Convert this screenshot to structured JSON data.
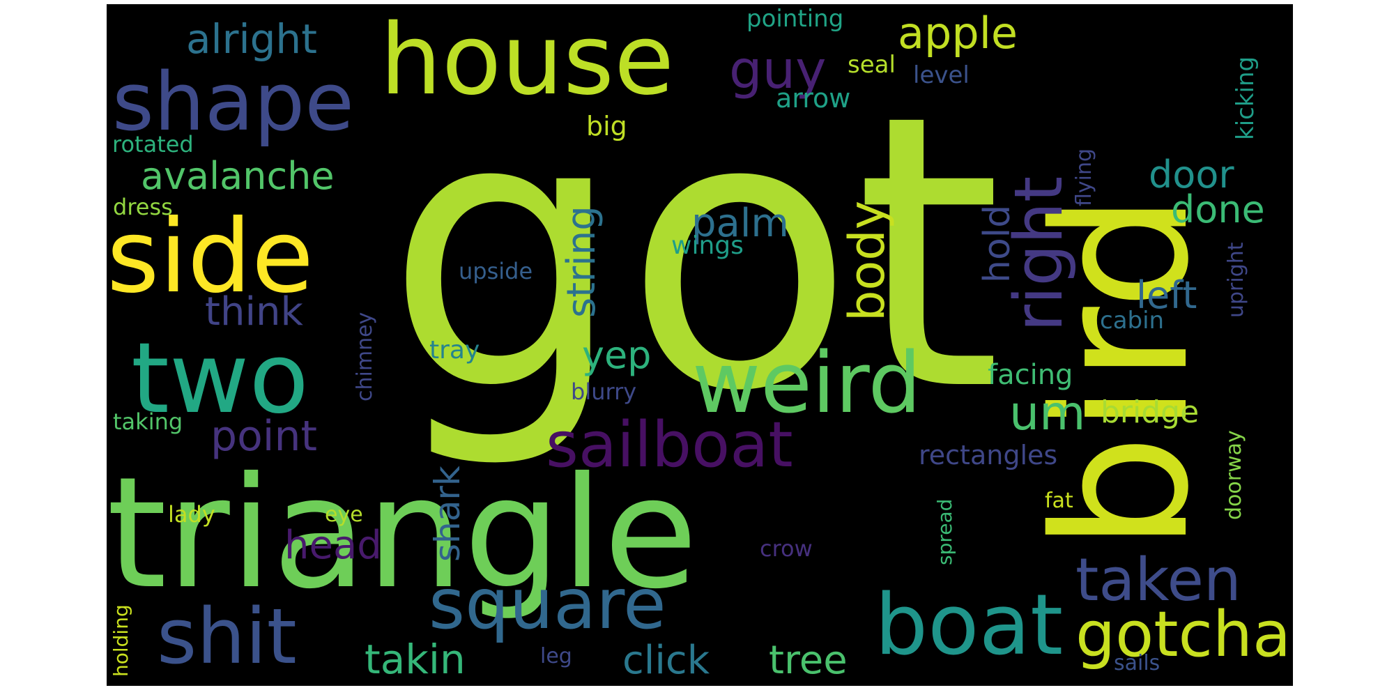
{
  "words": [
    {
      "text": "got",
      "color": "#addc30"
    },
    {
      "text": "triangle",
      "color": "#6ece58"
    },
    {
      "text": "bird",
      "color": "#d0e11c"
    },
    {
      "text": "house",
      "color": "#bddf26"
    },
    {
      "text": "side",
      "color": "#fde725"
    },
    {
      "text": "two",
      "color": "#22a884"
    },
    {
      "text": "shape",
      "color": "#3e4a89"
    },
    {
      "text": "weird",
      "color": "#5ec962"
    },
    {
      "text": "boat",
      "color": "#1f958b"
    },
    {
      "text": "shit",
      "color": "#3b528b"
    },
    {
      "text": "square",
      "color": "#31688e"
    },
    {
      "text": "sailboat",
      "color": "#471063"
    },
    {
      "text": "gotcha",
      "color": "#c8e020"
    },
    {
      "text": "right",
      "color": "#443983"
    },
    {
      "text": "taken",
      "color": "#3e4c8a"
    },
    {
      "text": "guy",
      "color": "#482173"
    },
    {
      "text": "body",
      "color": "#c8e020"
    },
    {
      "text": "um",
      "color": "#4ac16d"
    },
    {
      "text": "apple",
      "color": "#c2df23"
    },
    {
      "text": "avalanche",
      "color": "#52c569"
    },
    {
      "text": "tree",
      "color": "#4ac16d"
    },
    {
      "text": "click",
      "color": "#2a788e"
    },
    {
      "text": "takin",
      "color": "#35b779"
    },
    {
      "text": "palm",
      "color": "#2d708e"
    },
    {
      "text": "point",
      "color": "#46337e"
    },
    {
      "text": "string",
      "color": "#2c728e"
    },
    {
      "text": "door",
      "color": "#21918c"
    },
    {
      "text": "done",
      "color": "#3bbb75"
    },
    {
      "text": "alright",
      "color": "#2c728e"
    },
    {
      "text": "think",
      "color": "#414487"
    },
    {
      "text": "yep",
      "color": "#2db27d"
    },
    {
      "text": "left",
      "color": "#31688e"
    },
    {
      "text": "hold",
      "color": "#3e4a89"
    },
    {
      "text": "head",
      "color": "#481a6c"
    },
    {
      "text": "shark",
      "color": "#33638d"
    },
    {
      "text": "bridge",
      "color": "#a8db34"
    },
    {
      "text": "facing",
      "color": "#3fbc73"
    },
    {
      "text": "rectangles",
      "color": "#3f4788"
    },
    {
      "text": "pointing",
      "color": "#20a486"
    },
    {
      "text": "arrow",
      "color": "#1fa187"
    },
    {
      "text": "seal",
      "color": "#b5de2b"
    },
    {
      "text": "level",
      "color": "#3b528b"
    },
    {
      "text": "kicking",
      "color": "#1f9e89"
    },
    {
      "text": "flying",
      "color": "#3f4788"
    },
    {
      "text": "big",
      "color": "#c0df25"
    },
    {
      "text": "rotated",
      "color": "#2db27d"
    },
    {
      "text": "dress",
      "color": "#93d741"
    },
    {
      "text": "wings",
      "color": "#1f9e89"
    },
    {
      "text": "upside",
      "color": "#355f8d"
    },
    {
      "text": "upright",
      "color": "#3f4788"
    },
    {
      "text": "cabin",
      "color": "#2d708e"
    },
    {
      "text": "tray",
      "color": "#25848e"
    },
    {
      "text": "chimney",
      "color": "#3f4889"
    },
    {
      "text": "blurry",
      "color": "#3e4989"
    },
    {
      "text": "taking",
      "color": "#52c569"
    },
    {
      "text": "doorway",
      "color": "#86d549"
    },
    {
      "text": "lady",
      "color": "#c2df23"
    },
    {
      "text": "eye",
      "color": "#b5de2b"
    },
    {
      "text": "fat",
      "color": "#cae11f"
    },
    {
      "text": "spread",
      "color": "#3bbb75"
    },
    {
      "text": "crow",
      "color": "#46307e"
    },
    {
      "text": "holding",
      "color": "#cae11f"
    },
    {
      "text": "leg",
      "color": "#3e4989"
    },
    {
      "text": "sails",
      "color": "#3b528b"
    }
  ]
}
